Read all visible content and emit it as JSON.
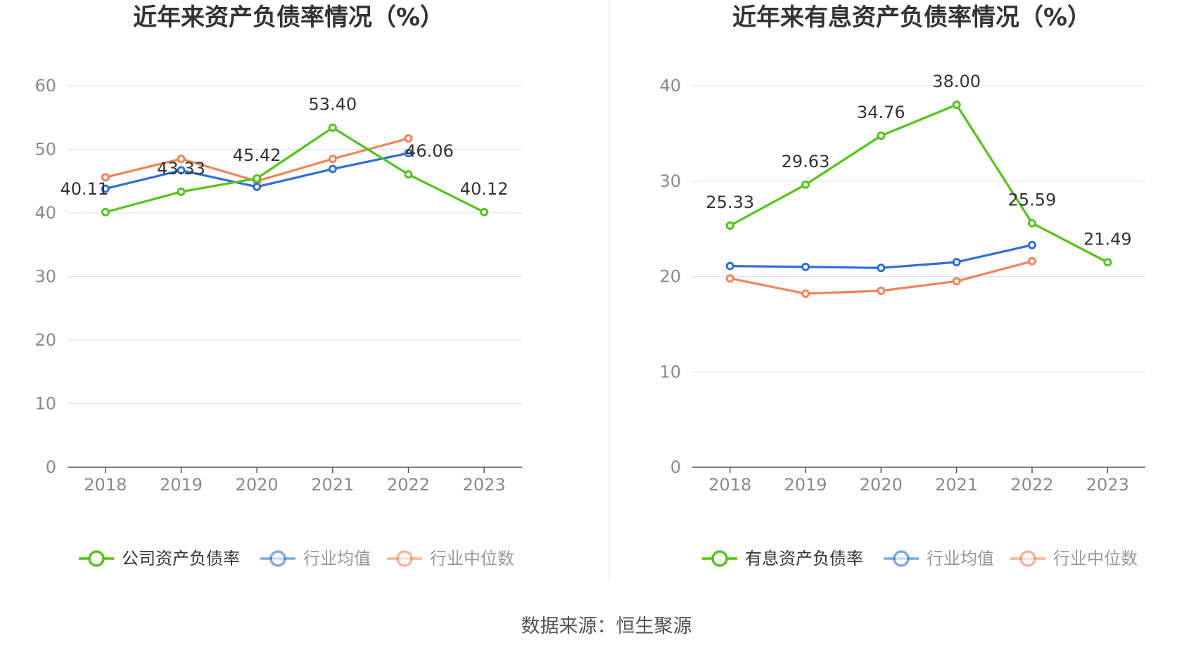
{
  "footer": {
    "source": "数据来源：恒生聚源"
  },
  "chart_data": [
    {
      "type": "line",
      "title": "近年来资产负债率情况（%）",
      "categories": [
        "2018",
        "2019",
        "2020",
        "2021",
        "2022",
        "2023"
      ],
      "ylim": [
        0,
        60
      ],
      "yticks": [
        0,
        10,
        20,
        30,
        40,
        50,
        60
      ],
      "grid": true,
      "legend_position": "bottom",
      "series": [
        {
          "name": "公司资产负债率",
          "color": "#52c41a",
          "values": [
            40.11,
            43.33,
            45.42,
            53.4,
            46.06,
            40.12
          ],
          "labels": [
            "40.11",
            "43.33",
            "45.42",
            "53.40",
            "46.06",
            "40.12"
          ]
        },
        {
          "name": "行业均值",
          "color": "#2f6fd8",
          "values": [
            43.8,
            46.7,
            44.1,
            46.9,
            49.4,
            null
          ]
        },
        {
          "name": "行业中位数",
          "color": "#f0845a",
          "values": [
            45.6,
            48.5,
            45.0,
            48.5,
            51.7,
            null
          ]
        }
      ]
    },
    {
      "type": "line",
      "title": "近年来有息资产负债率情况（%）",
      "categories": [
        "2018",
        "2019",
        "2020",
        "2021",
        "2022",
        "2023"
      ],
      "ylim": [
        0,
        40
      ],
      "yticks": [
        0,
        10,
        20,
        30,
        40
      ],
      "grid": true,
      "legend_position": "bottom",
      "series": [
        {
          "name": "有息资产负债率",
          "color": "#52c41a",
          "values": [
            25.33,
            29.63,
            34.76,
            38.0,
            25.59,
            21.49
          ],
          "labels": [
            "25.33",
            "29.63",
            "34.76",
            "38.00",
            "25.59",
            "21.49"
          ]
        },
        {
          "name": "行业均值",
          "color": "#2f6fd8",
          "values": [
            21.1,
            21.0,
            20.9,
            21.5,
            23.3,
            null
          ]
        },
        {
          "name": "行业中位数",
          "color": "#f0845a",
          "values": [
            19.8,
            18.2,
            18.5,
            19.5,
            21.6,
            null
          ]
        }
      ]
    }
  ]
}
